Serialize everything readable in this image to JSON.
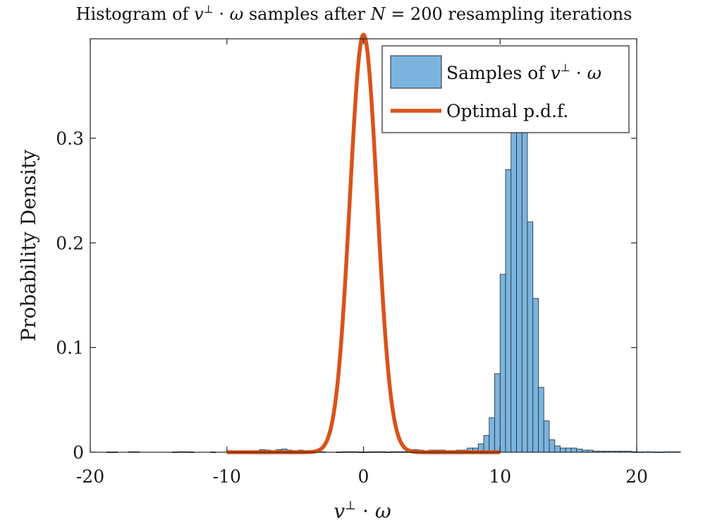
{
  "chart_data": {
    "type": "bar",
    "title": {
      "prefix": "Histogram of ",
      "var_v": "v",
      "var_perp": "⊥",
      "dot": " · ",
      "var_omega": "ω",
      "middle": " samples after ",
      "var_N": "N",
      "suffix": " = 200 resampling iterations"
    },
    "xlabel": {
      "var_v": "v",
      "var_perp": "⊥",
      "dot": " · ",
      "var_omega": "ω"
    },
    "ylabel": "Probability Density",
    "xlim": [
      -20,
      20
    ],
    "ylim": [
      0,
      0.395
    ],
    "xticks": [
      -20,
      -10,
      0,
      10,
      20
    ],
    "xtick_labels": [
      "-20",
      "-10",
      "0",
      "10",
      "20"
    ],
    "yticks": [
      0,
      0.1,
      0.2,
      0.3
    ],
    "ytick_labels": [
      "0",
      "0.1",
      "0.2",
      "0.3"
    ],
    "grid": false,
    "legend_position": "top-right",
    "legend": [
      {
        "kind": "patch",
        "text": "Samples of ",
        "var_v": "v",
        "var_perp": "⊥",
        "dot": " · ",
        "var_omega": "ω"
      },
      {
        "kind": "line",
        "text": "Optimal p.d.f."
      }
    ],
    "histogram": {
      "name": "Samples of v⊥ · ω",
      "bin_width": 0.4,
      "bin_edges_start": -20,
      "densities": [
        0,
        0,
        0,
        0.0003,
        0.0003,
        0,
        0,
        0.0005,
        0.0005,
        0,
        0,
        0,
        0,
        0,
        0,
        0.0003,
        0.0005,
        0.0005,
        0.0003,
        0,
        0,
        0,
        0.0003,
        0,
        0,
        0,
        0,
        0,
        0,
        0.0005,
        0.0015,
        0.0025,
        0.002,
        0.0015,
        0.0025,
        0.003,
        0.002,
        0.0015,
        0.002,
        0.001,
        0.0005,
        0,
        0.0005,
        0,
        0,
        0.0003,
        0.0005,
        0.0005,
        0.0005,
        0.0003,
        0.0003,
        0.0005,
        0.0005,
        0.0005,
        0.0003,
        0.0005,
        0.0005,
        0.0005,
        0.0005,
        0.0025,
        0.002,
        0.001,
        0.002,
        0.002,
        0.002,
        0.001,
        0.0015,
        0.002,
        0.002,
        0.004,
        0.004,
        0.008,
        0.016,
        0.033,
        0.075,
        0.17,
        0.27,
        0.342,
        0.34,
        0.325,
        0.22,
        0.147,
        0.062,
        0.03,
        0.012,
        0.006,
        0.004,
        0.004,
        0.004,
        0.003,
        0.002,
        0.002,
        0.001,
        0.001,
        0.001,
        0.001,
        0.001,
        0.001,
        0.001,
        0.0005,
        0.0003,
        0.0005,
        0.0005,
        0.0003,
        0.0003,
        0.0005,
        0.0005,
        0.0005,
        0,
        0,
        0,
        0,
        0,
        0,
        0,
        0.0015,
        0.002,
        0.0015,
        0.001,
        0.0005,
        0.0005,
        0.0005,
        0,
        0,
        0,
        0.0005,
        0.0005,
        0,
        0,
        0,
        0,
        0,
        0,
        0.0003,
        0,
        0,
        0,
        0,
        0,
        0
      ]
    },
    "pdf_curve": {
      "name": "Optimal p.d.f.",
      "distribution": "normal",
      "mean": 0,
      "std": 1,
      "x_range": [
        -10,
        10
      ]
    },
    "colors": {
      "bar_fill": "#7bb4de",
      "bar_edge": "#1f2a36",
      "curve": "#d95319",
      "axes": "#262626"
    }
  }
}
